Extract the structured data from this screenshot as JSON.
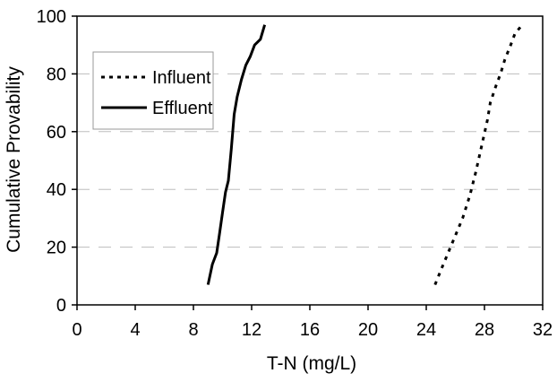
{
  "chart_data": {
    "type": "line",
    "title": "",
    "xlabel": "T-N (mg/L)",
    "ylabel": "Cumulative Provability",
    "xlim": [
      0,
      32
    ],
    "ylim": [
      0,
      100
    ],
    "x_ticks": [
      "0",
      "4",
      "8",
      "12",
      "16",
      "20",
      "24",
      "28",
      "32"
    ],
    "y_ticks": [
      "0",
      "20",
      "40",
      "60",
      "80",
      "100"
    ],
    "grid": "horizontal dashed",
    "legend_position": "top-left",
    "series": [
      {
        "name": "Influent",
        "style": "dotted",
        "color": "#000000",
        "x": [
          24.6,
          25.0,
          25.5,
          26.0,
          26.5,
          27.0,
          27.4,
          27.8,
          28.2,
          28.4,
          28.8,
          29.1,
          29.4,
          29.8,
          30.1,
          30.6
        ],
        "y": [
          7,
          12,
          18,
          24,
          30,
          38,
          46,
          55,
          64,
          70,
          76,
          80,
          85,
          90,
          94,
          97
        ]
      },
      {
        "name": "Effluent",
        "style": "solid",
        "color": "#000000",
        "x": [
          9.0,
          9.3,
          9.6,
          9.8,
          10.0,
          10.2,
          10.4,
          10.6,
          10.8,
          11.0,
          11.3,
          11.6,
          11.9,
          12.2,
          12.6,
          12.9
        ],
        "y": [
          7,
          14,
          18,
          25,
          32,
          39,
          43,
          54,
          66,
          72,
          78,
          83,
          86,
          90,
          92,
          97
        ]
      }
    ]
  }
}
